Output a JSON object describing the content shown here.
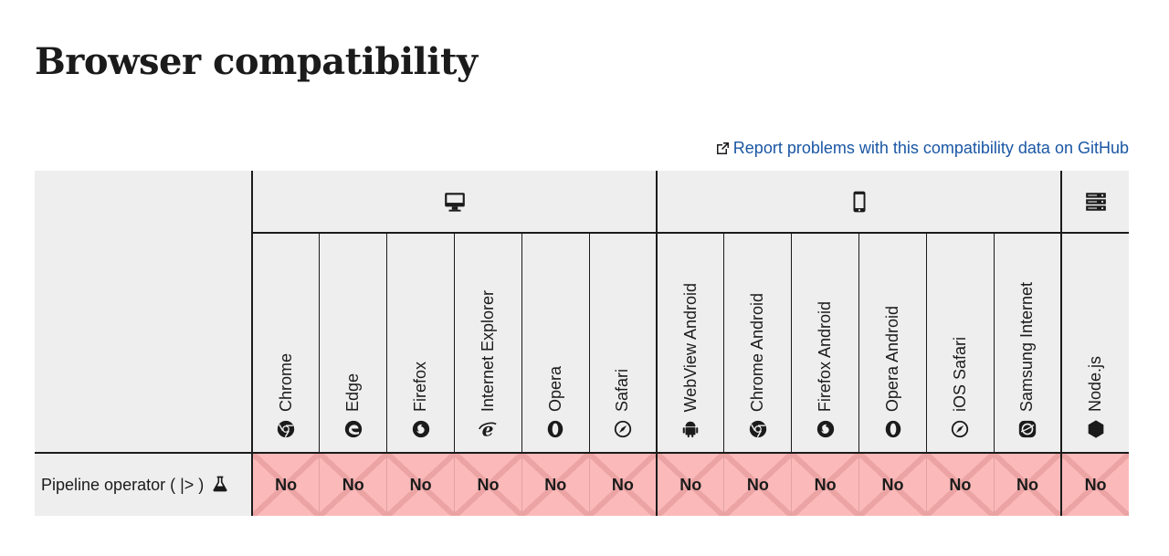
{
  "page": {
    "title": "Browser compatibility",
    "report_link": "Report problems with this compatibility data on GitHub"
  },
  "platforms": [
    {
      "name": "desktop",
      "icon": "desktop-icon",
      "span": 6
    },
    {
      "name": "mobile",
      "icon": "mobile-icon",
      "span": 6
    },
    {
      "name": "server",
      "icon": "server-icon",
      "span": 1
    }
  ],
  "browsers": [
    {
      "label": "Chrome",
      "icon": "chrome-icon"
    },
    {
      "label": "Edge",
      "icon": "edge-icon"
    },
    {
      "label": "Firefox",
      "icon": "firefox-icon"
    },
    {
      "label": "Internet Explorer",
      "icon": "internet-explorer-icon"
    },
    {
      "label": "Opera",
      "icon": "opera-icon"
    },
    {
      "label": "Safari",
      "icon": "safari-icon"
    },
    {
      "label": "WebView Android",
      "icon": "android-icon"
    },
    {
      "label": "Chrome Android",
      "icon": "chrome-icon"
    },
    {
      "label": "Firefox Android",
      "icon": "firefox-icon"
    },
    {
      "label": "Opera Android",
      "icon": "opera-icon"
    },
    {
      "label": "iOS Safari",
      "icon": "safari-icon"
    },
    {
      "label": "Samsung Internet",
      "icon": "samsung-internet-icon"
    },
    {
      "label": "Node.js",
      "icon": "nodejs-icon"
    }
  ],
  "features": [
    {
      "name": "Pipeline operator ( |> )",
      "experimental_icon": "flask-icon",
      "support": [
        "No",
        "No",
        "No",
        "No",
        "No",
        "No",
        "No",
        "No",
        "No",
        "No",
        "No",
        "No",
        "No"
      ]
    }
  ],
  "colors": {
    "no_support_bg": "#fbb9b9",
    "link": "#1a57a4",
    "header_bg": "#eeeeee"
  }
}
